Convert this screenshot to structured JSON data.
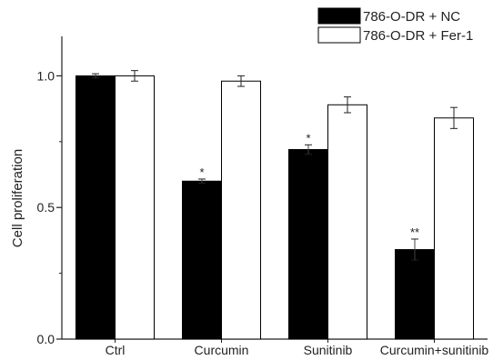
{
  "chart_data": {
    "type": "bar",
    "title": "",
    "xlabel": "",
    "ylabel": "Cell proliferation",
    "ylim": [
      0,
      1.15
    ],
    "yticks": [
      "0.0",
      "0.5",
      "1.0"
    ],
    "categories": [
      "Ctrl",
      "Curcumin",
      "Sunitinib",
      "Curcumin+sunitinib"
    ],
    "series": [
      {
        "name": "786-O-DR + NC",
        "color": "#000000",
        "values": [
          1.0,
          0.6,
          0.72,
          0.34
        ],
        "errors": [
          0.008,
          0.008,
          0.018,
          0.04
        ],
        "annotations": [
          "",
          "*",
          "*",
          "**"
        ]
      },
      {
        "name": "786-O-DR + Fer-1",
        "color": "#ffffff",
        "values": [
          1.0,
          0.98,
          0.89,
          0.84
        ],
        "errors": [
          0.02,
          0.02,
          0.03,
          0.04
        ],
        "annotations": [
          "",
          "",
          "",
          ""
        ]
      }
    ],
    "grid": false,
    "legend": "top-right"
  }
}
